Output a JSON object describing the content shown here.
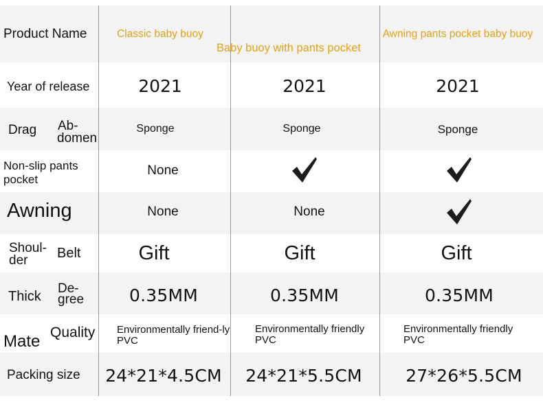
{
  "rows": {
    "product_name": {
      "label": "Product Name",
      "values": [
        "Classic baby buoy",
        "Baby buoy with pants pocket",
        "Awning pants pocket baby buoy"
      ]
    },
    "year": {
      "label": "Year of release",
      "values": [
        "2021",
        "2021",
        "2021"
      ]
    },
    "drag": {
      "label_a": "Drag",
      "label_b_1": "Ab-",
      "label_b_2": "domen",
      "values": [
        "Sponge",
        "Sponge",
        "Sponge"
      ]
    },
    "nonslip": {
      "label_1": "Non-slip pants",
      "label_2": "pocket",
      "value_1": "None",
      "check_icon": "check-icon"
    },
    "awning": {
      "label": "Awning",
      "value_1": "None",
      "value_2": "None",
      "check_icon": "check-icon"
    },
    "shoulder": {
      "label_a_1": "Shoul-",
      "label_a_2": "der",
      "label_b": "Belt",
      "values": [
        "Gift",
        "Gift",
        "Gift"
      ]
    },
    "thick": {
      "label_a": "Thick",
      "label_b_1": "De-",
      "label_b_2": "gree",
      "values": [
        "0.35MM",
        "0.35MM",
        "0.35MM"
      ]
    },
    "material": {
      "label_a": "Mate",
      "label_b": "Quality",
      "values": [
        "Environmentally friend-ly PVC",
        "Environmentally friendly PVC",
        "Environmentally friendly PVC"
      ]
    },
    "packing": {
      "label": "Packing size",
      "values": [
        "24*21*4.5CM",
        "24*21*5.5CM",
        "27*26*5.5CM"
      ]
    }
  },
  "colors": {
    "gold": "#e0a21c",
    "row_shade": "#f3f3f3",
    "divider": "#9a9a9a"
  }
}
